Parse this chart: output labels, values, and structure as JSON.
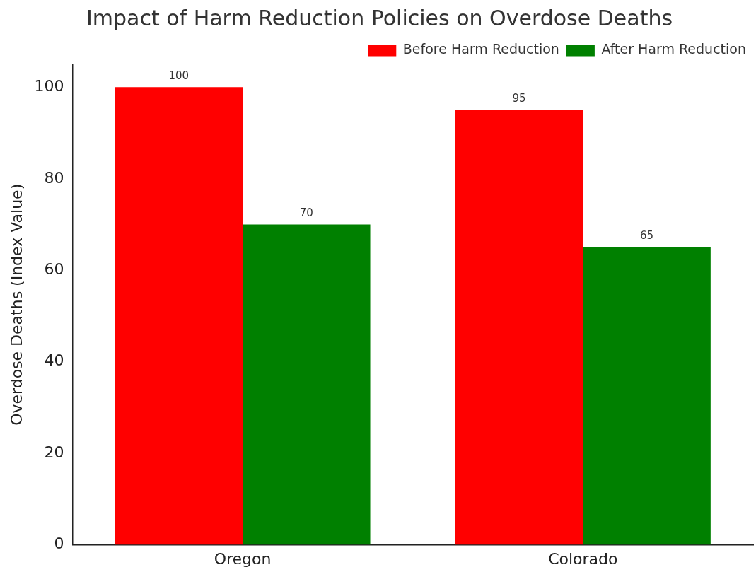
{
  "chart_data": {
    "type": "bar",
    "title": "Impact of Harm Reduction Policies on Overdose Deaths",
    "ylabel": "Overdose Deaths (Index Value)",
    "categories": [
      "Oregon",
      "Colorado"
    ],
    "series": [
      {
        "name": "Before Harm Reduction",
        "color": "#ff0000",
        "values": [
          100,
          95
        ]
      },
      {
        "name": "After Harm Reduction",
        "color": "#008000",
        "values": [
          70,
          65
        ]
      }
    ],
    "ylim": [
      0,
      105
    ],
    "yticks": [
      0,
      20,
      40,
      60,
      80,
      100
    ],
    "grid": "x",
    "legend": "top right",
    "data_labels": true
  }
}
